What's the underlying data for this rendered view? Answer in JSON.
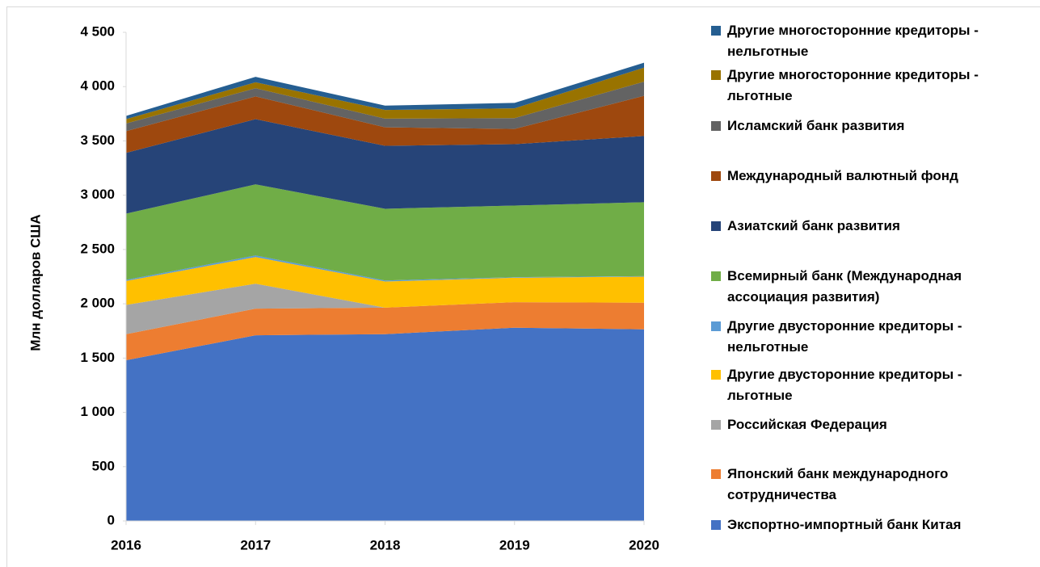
{
  "chart_data": {
    "type": "area",
    "y_label": "Млн долларов США",
    "x": [
      2016,
      2017,
      2018,
      2019,
      2020
    ],
    "xlim": [
      2016,
      2020
    ],
    "xticks": [
      2016,
      2017,
      2018,
      2019,
      2020
    ],
    "ylim": [
      0,
      4500
    ],
    "yticks": [
      0,
      500,
      {
        "value": 1000,
        "label": "1 000"
      },
      {
        "value": 1500,
        "label": "1 500"
      },
      {
        "value": 2000,
        "label": "2 000"
      },
      {
        "value": 2500,
        "label": "2 500"
      },
      {
        "value": 3000,
        "label": "3 000"
      },
      {
        "value": 3500,
        "label": "3 500"
      },
      {
        "value": 4000,
        "label": "4 000"
      },
      {
        "value": 4500,
        "label": "4 500"
      }
    ],
    "stacked": true,
    "series": [
      {
        "name": "Экспортно-импортный банк Китая",
        "color": "#4472c4",
        "values": [
          1480,
          1710,
          1720,
          1780,
          1765
        ]
      },
      {
        "name": "Японский банк международного сотрудничества",
        "color": "#ed7d31",
        "values": [
          240,
          245,
          245,
          235,
          245
        ]
      },
      {
        "name": "Российская Федерация",
        "color": "#a5a5a5",
        "values": [
          270,
          230,
          0,
          0,
          0
        ]
      },
      {
        "name": "Другие двусторонние кредиторы - льготные",
        "color": "#ffc000",
        "values": [
          220,
          245,
          240,
          225,
          240
        ]
      },
      {
        "name": "Другие двусторонние кредиторы - нельготные",
        "color": "#5b9bd5",
        "values": [
          10,
          15,
          10,
          5,
          5
        ]
      },
      {
        "name": "Всемирный банк (Международная ассоциация развития)",
        "color": "#70ad47",
        "values": [
          610,
          655,
          660,
          660,
          680
        ]
      },
      {
        "name": "Азиатский банк развития",
        "color": "#264478",
        "values": [
          560,
          600,
          580,
          565,
          610
        ]
      },
      {
        "name": "Международный валютный фонд",
        "color": "#9e480e",
        "values": [
          200,
          210,
          170,
          140,
          370
        ]
      },
      {
        "name": "Исламский банк развития",
        "color": "#636363",
        "values": [
          70,
          75,
          80,
          100,
          130
        ]
      },
      {
        "name": "Другие многосторонние кредиторы - льготные",
        "color": "#997300",
        "values": [
          40,
          55,
          80,
          90,
          130
        ]
      },
      {
        "name": "Другие многосторонние кредиторы - нельготные",
        "color": "#255e91",
        "values": [
          30,
          50,
          40,
          50,
          45
        ]
      }
    ]
  }
}
